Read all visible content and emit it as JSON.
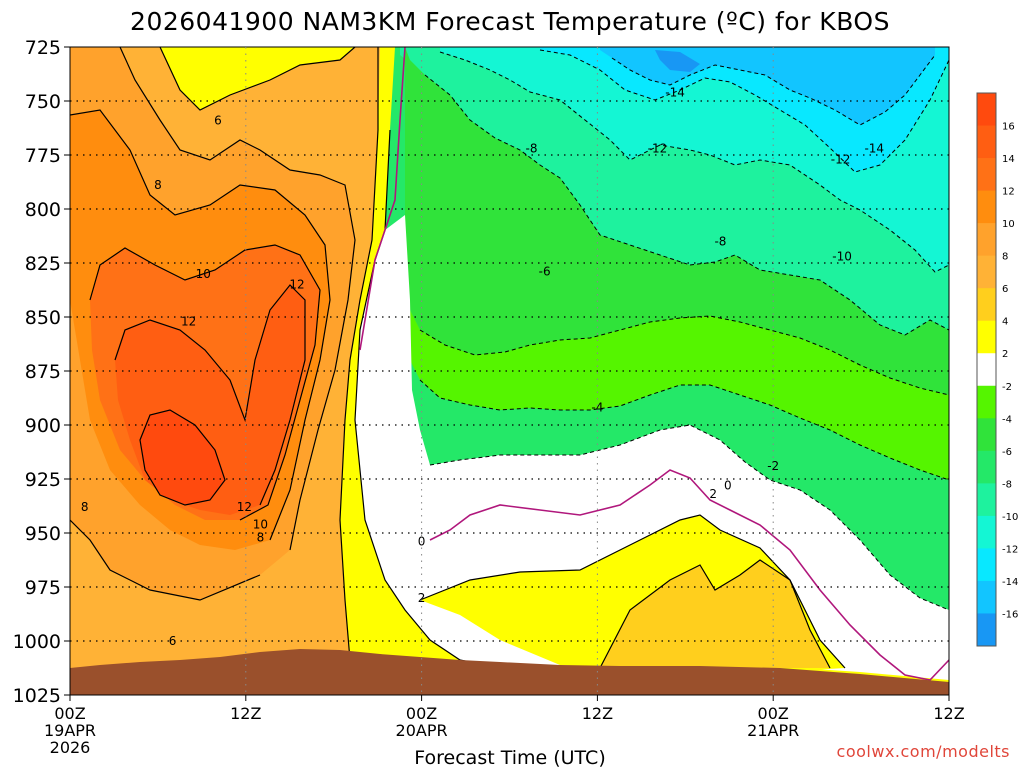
{
  "chart_data": {
    "type": "time-height-contour",
    "title": "2026041900 NAM3KM Forecast Temperature (ºC) for KBOS",
    "xlabel": "Forecast Time (UTC)",
    "ylabel": "",
    "x_hours_range": [
      0,
      60
    ],
    "y_range_hpa": [
      725,
      1025
    ],
    "y_ticks": [
      725,
      750,
      775,
      800,
      825,
      850,
      875,
      900,
      925,
      950,
      975,
      1000,
      1025
    ],
    "x_ticks": [
      {
        "hour": 0,
        "lines": [
          "00Z",
          "19APR",
          "2026"
        ]
      },
      {
        "hour": 12,
        "lines": [
          "12Z"
        ]
      },
      {
        "hour": 24,
        "lines": [
          "00Z",
          "20APR"
        ]
      },
      {
        "hour": 36,
        "lines": [
          "12Z"
        ]
      },
      {
        "hour": 48,
        "lines": [
          "00Z",
          "21APR"
        ]
      },
      {
        "hour": 60,
        "lines": [
          "12Z"
        ]
      }
    ],
    "colorbar_ticks": [
      16,
      14,
      12,
      10,
      8,
      6,
      4,
      2,
      -2,
      -4,
      -6,
      -8,
      -10,
      -12,
      -14,
      -16
    ],
    "color_levels": [
      {
        "from": 16,
        "to": 18,
        "color": "#ff4a0e"
      },
      {
        "from": 14,
        "to": 16,
        "color": "#ff5e12"
      },
      {
        "from": 12,
        "to": 14,
        "color": "#ff7116"
      },
      {
        "from": 10,
        "to": 12,
        "color": "#ff8d0e"
      },
      {
        "from": 8,
        "to": 10,
        "color": "#ffa22c"
      },
      {
        "from": 6,
        "to": 8,
        "color": "#ffb236"
      },
      {
        "from": 4,
        "to": 6,
        "color": "#ffcf1d"
      },
      {
        "from": 2,
        "to": 4,
        "color": "#ffff00"
      },
      {
        "from": -2,
        "to": 2,
        "color": "#ffffff"
      },
      {
        "from": -4,
        "to": -2,
        "color": "#55f500"
      },
      {
        "from": -6,
        "to": -4,
        "color": "#30e33a"
      },
      {
        "from": -8,
        "to": -6,
        "color": "#24e868"
      },
      {
        "from": -10,
        "to": -8,
        "color": "#1ef29e"
      },
      {
        "from": -12,
        "to": -10,
        "color": "#14f6d4"
      },
      {
        "from": -14,
        "to": -12,
        "color": "#08e8ff"
      },
      {
        "from": -16,
        "to": -14,
        "color": "#12c5ff"
      },
      {
        "from": -18,
        "to": -16,
        "color": "#1897f4"
      }
    ],
    "contour_labels": [
      {
        "text": "6",
        "hour": 10.1,
        "hpa": 759
      },
      {
        "text": "8",
        "hour": 6.0,
        "hpa": 789
      },
      {
        "text": "10",
        "hour": 9.1,
        "hpa": 830
      },
      {
        "text": "12",
        "hour": 15.5,
        "hpa": 835
      },
      {
        "text": "12",
        "hour": 8.1,
        "hpa": 852
      },
      {
        "text": "12",
        "hour": 11.9,
        "hpa": 938
      },
      {
        "text": "10",
        "hour": 13.0,
        "hpa": 946
      },
      {
        "text": "8",
        "hour": 13.0,
        "hpa": 952
      },
      {
        "text": "8",
        "hour": 1.0,
        "hpa": 938
      },
      {
        "text": "6",
        "hour": 7.0,
        "hpa": 1000
      },
      {
        "text": "0",
        "hour": 24.0,
        "hpa": 954
      },
      {
        "text": "2",
        "hour": 24.0,
        "hpa": 980
      },
      {
        "text": "-14",
        "hour": 41.3,
        "hpa": 746
      },
      {
        "text": "-12",
        "hour": 40.1,
        "hpa": 772
      },
      {
        "text": "-8",
        "hour": 31.5,
        "hpa": 772
      },
      {
        "text": "-12",
        "hour": 52.6,
        "hpa": 777
      },
      {
        "text": "-14",
        "hour": 54.9,
        "hpa": 772
      },
      {
        "text": "-8",
        "hour": 44.4,
        "hpa": 815
      },
      {
        "text": "-10",
        "hour": 52.7,
        "hpa": 822
      },
      {
        "text": "-6",
        "hour": 32.4,
        "hpa": 829
      },
      {
        "text": "-4",
        "hour": 36.0,
        "hpa": 892
      },
      {
        "text": "-2",
        "hour": 48.0,
        "hpa": 919
      },
      {
        "text": "2",
        "hour": 43.9,
        "hpa": 932
      },
      {
        "text": "0",
        "hour": 44.9,
        "hpa": 928
      }
    ],
    "terrain": {
      "color": "#9a502c",
      "surface_hpa_range": [
        1004,
        1016
      ]
    }
  },
  "credit": "coolwx.com/modelts"
}
